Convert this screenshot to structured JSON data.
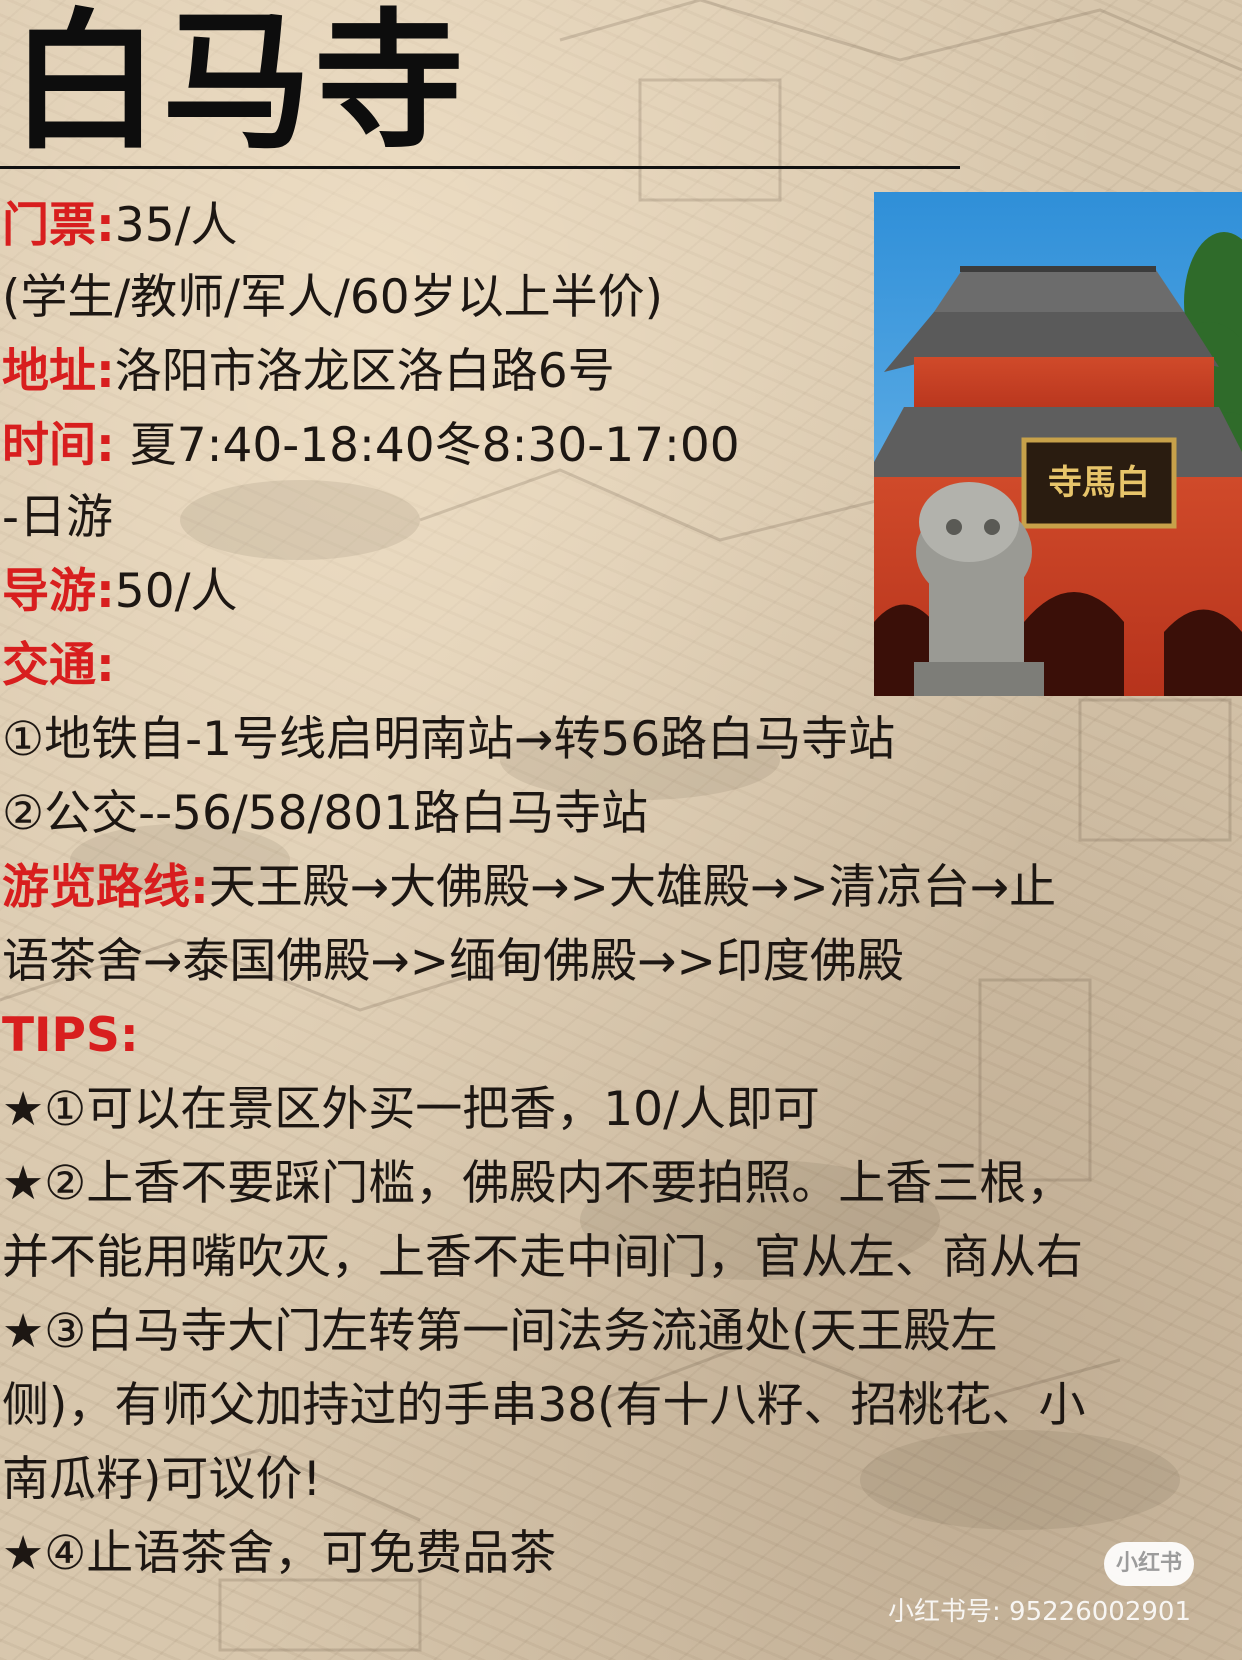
{
  "title": "白马寺",
  "photo": {
    "plaque_text": "寺馬白",
    "icon": "temple-photo"
  },
  "ticket": {
    "label": "门票:",
    "value": "35/人",
    "note": "(学生/教师/军人/60岁以上半价)"
  },
  "address": {
    "label": "地址:",
    "value": "洛阳市洛龙区洛白路6号"
  },
  "hours": {
    "label": "时间:",
    "value": " 夏7:40-18:40冬8:30-17:00",
    "note": "-日游"
  },
  "guide": {
    "label": "导游:",
    "value": "50/人"
  },
  "transport": {
    "label": "交通:",
    "items": [
      "①地铁自-1号线启明南站→转56路白马寺站",
      "②公交--56/58/801路白马寺站"
    ]
  },
  "route": {
    "label": "游览路线:",
    "line1": "天王殿→大佛殿→>大雄殿→>清凉台→止",
    "line2": "语茶舍→泰国佛殿→>缅甸佛殿→>印度佛殿"
  },
  "tips": {
    "label": "TIPS:",
    "lines": [
      "★①可以在景区外买一把香，10/人即可",
      "★②上香不要踩门槛，佛殿内不要拍照。上香三根，",
      "并不能用嘴吹灭，上香不走中间门，官从左、商从右",
      "★③白马寺大门左转第一间法务流通处(天王殿左",
      "侧)，有师父加持过的手串38(有十八籽、招桃花、小",
      "南瓜籽)可议价!",
      "★④止语茶舍，可免费品茶"
    ]
  },
  "watermark": {
    "logo": "小红书",
    "id": "小红书号: 95226002901"
  },
  "colors": {
    "label_red": "#d81e1e",
    "text": "#1d1713",
    "background": "#d8c7ad"
  }
}
